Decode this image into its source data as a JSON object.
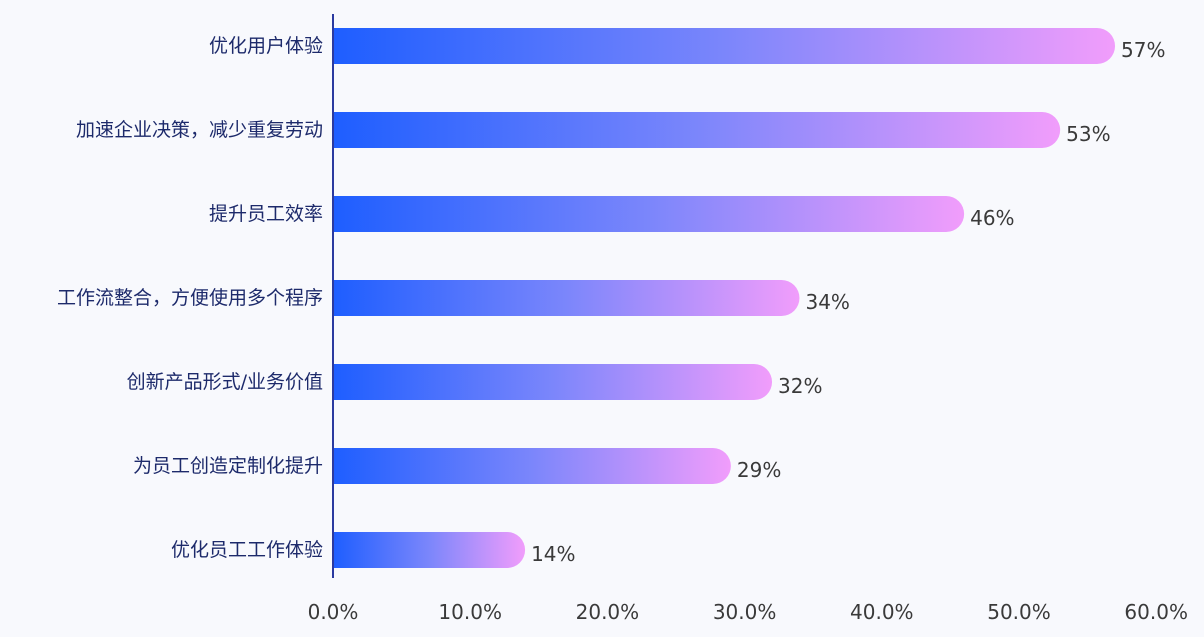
{
  "chart_data": {
    "type": "bar",
    "orientation": "horizontal",
    "categories": [
      "优化用户体验",
      "加速企业决策，减少重复劳动",
      "提升员工效率",
      "工作流整合，方便使用多个程序",
      "创新产品形式/业务价值",
      "为员工创造定制化提升",
      "优化员工工作体验"
    ],
    "values": [
      57,
      53,
      46,
      34,
      32,
      29,
      14
    ],
    "value_labels": [
      "57%",
      "53%",
      "46%",
      "34%",
      "32%",
      "29%",
      "14%"
    ],
    "xlim": [
      0,
      60
    ],
    "xticks": [
      0,
      10,
      20,
      30,
      40,
      50,
      60
    ],
    "xtick_labels": [
      "0.0%",
      "10.0%",
      "20.0%",
      "30.0%",
      "40.0%",
      "50.0%",
      "60.0%"
    ],
    "grid": false,
    "legend": "none",
    "colors": {
      "bar_start": "#1e5eff",
      "bar_mid": "#7b86fb",
      "bar_end": "#f19dfb",
      "axis": "#2b3aa0",
      "category_text": "#1d2a6b",
      "value_text": "#3a3a3a",
      "background": "#f8f9fd"
    }
  }
}
